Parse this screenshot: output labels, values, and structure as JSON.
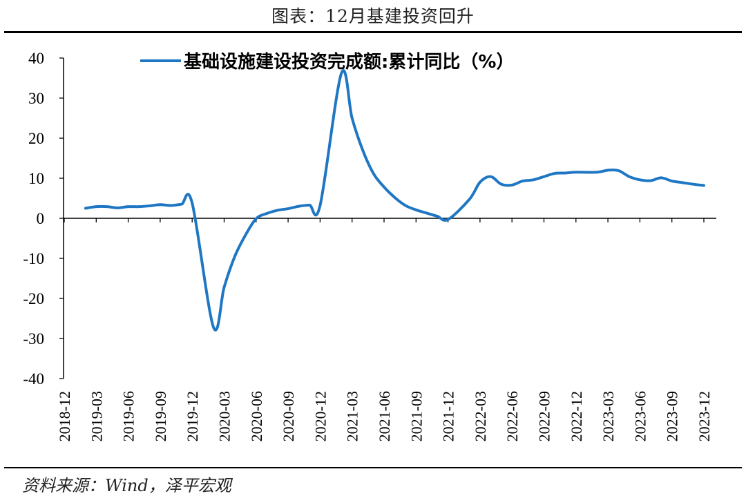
{
  "header": {
    "figure_title": "图表：12月基建投资回升"
  },
  "footer": {
    "source": "资料来源：Wind，泽平宏观"
  },
  "chart_data": {
    "type": "line",
    "title": "",
    "xlabel": "",
    "ylabel": "",
    "ylim": [
      -40,
      40
    ],
    "yticks": [
      40,
      30,
      20,
      10,
      0,
      -10,
      -20,
      -30,
      -40
    ],
    "grid": false,
    "legend_position": "top",
    "color": "#1F77C4",
    "x_ticks": [
      "2018-12",
      "2019-03",
      "2019-06",
      "2019-09",
      "2019-12",
      "2020-03",
      "2020-06",
      "2020-09",
      "2020-12",
      "2021-03",
      "2021-06",
      "2021-09",
      "2021-12",
      "2022-03",
      "2022-06",
      "2022-09",
      "2022-12",
      "2023-03",
      "2023-06",
      "2023-09",
      "2023-12"
    ],
    "series": [
      {
        "name": "基础设施建设投资完成额:累计同比（%）",
        "x": [
          "2019-02",
          "2019-03",
          "2019-04",
          "2019-05",
          "2019-06",
          "2019-07",
          "2019-08",
          "2019-09",
          "2019-10",
          "2019-11",
          "2019-12",
          "2020-02",
          "2020-03",
          "2020-04",
          "2020-05",
          "2020-06",
          "2020-07",
          "2020-08",
          "2020-09",
          "2020-10",
          "2020-11",
          "2020-12",
          "2021-02",
          "2021-03",
          "2021-04",
          "2021-05",
          "2021-06",
          "2021-07",
          "2021-08",
          "2021-09",
          "2021-10",
          "2021-11",
          "2021-12",
          "2022-02",
          "2022-03",
          "2022-04",
          "2022-05",
          "2022-06",
          "2022-07",
          "2022-08",
          "2022-09",
          "2022-10",
          "2022-11",
          "2022-12",
          "2023-02",
          "2023-03",
          "2023-04",
          "2023-05",
          "2023-06",
          "2023-07",
          "2023-08",
          "2023-09",
          "2023-10",
          "2023-11",
          "2023-12"
        ],
        "values": [
          2.5,
          2.9,
          2.9,
          2.6,
          2.9,
          2.9,
          3.1,
          3.4,
          3.2,
          3.5,
          3.8,
          -27.2,
          -17.2,
          -9.5,
          -4.2,
          -0.1,
          1.2,
          2.0,
          2.4,
          3.0,
          3.3,
          3.2,
          36.2,
          25.0,
          17.0,
          11.2,
          7.8,
          5.2,
          3.2,
          2.1,
          1.3,
          0.5,
          -0.3,
          4.7,
          9.0,
          10.4,
          8.5,
          8.3,
          9.3,
          9.6,
          10.4,
          11.2,
          11.3,
          11.5,
          11.5,
          12.0,
          11.9,
          10.4,
          9.6,
          9.4,
          10.1,
          9.3,
          8.9,
          8.5,
          8.2
        ]
      }
    ]
  }
}
